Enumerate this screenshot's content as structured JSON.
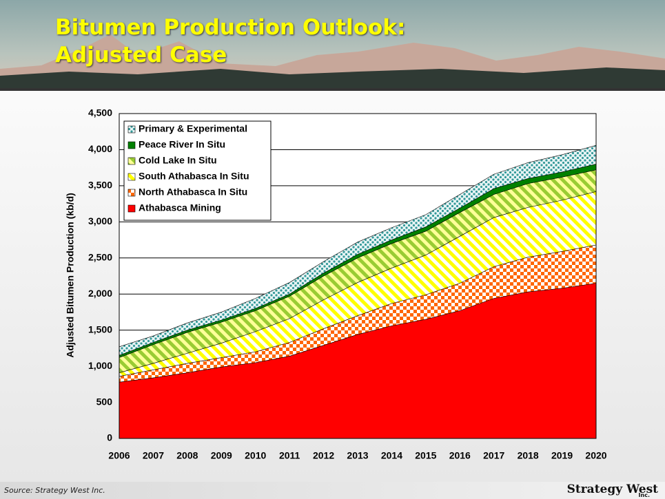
{
  "chart_data": {
    "type": "stacked_area",
    "title": "Bitumen Production Outlook: Adjusted Case",
    "y_label": "Adjusted Bitumen Production (kb/d)",
    "x": [
      2006,
      2007,
      2008,
      2009,
      2010,
      2011,
      2012,
      2013,
      2014,
      2015,
      2016,
      2017,
      2018,
      2019,
      2020
    ],
    "xlim": [
      2006,
      2020
    ],
    "ylim": [
      0,
      4500
    ],
    "yticks": [
      0,
      500,
      {
        "value": 1000,
        "label": "1,000"
      },
      {
        "value": 1500,
        "label": "1,500"
      },
      {
        "value": 2000,
        "label": "2,000"
      },
      {
        "value": 2500,
        "label": "2,500"
      },
      {
        "value": 3000,
        "label": "3,000"
      },
      {
        "value": 3500,
        "label": "3,500"
      },
      {
        "value": 4000,
        "label": "4,000"
      },
      {
        "value": 4500,
        "label": "4,500"
      }
    ],
    "grid": true,
    "legend": "top-left",
    "series": [
      {
        "name": "Athabasca Mining",
        "color": "#ff0000",
        "pattern": "solid",
        "values": [
          780,
          840,
          910,
          990,
          1050,
          1140,
          1290,
          1440,
          1560,
          1650,
          1770,
          1940,
          2030,
          2080,
          2150
        ]
      },
      {
        "name": "North Athabasca In Situ",
        "color": "#ff6600",
        "pattern": "checker",
        "values": [
          80,
          110,
          130,
          130,
          150,
          190,
          230,
          260,
          310,
          340,
          380,
          440,
          480,
          510,
          530
        ]
      },
      {
        "name": "South Athabasca In Situ",
        "color": "#ffff00",
        "pattern": "stripes",
        "values": [
          50,
          90,
          140,
          200,
          280,
          330,
          400,
          460,
          490,
          550,
          650,
          680,
          690,
          710,
          740
        ]
      },
      {
        "name": "Cold Lake In Situ",
        "color": "#99cc33",
        "pattern": "stripes",
        "values": [
          210,
          260,
          290,
          290,
          290,
          310,
          330,
          340,
          340,
          330,
          330,
          320,
          330,
          320,
          300
        ]
      },
      {
        "name": "Peace River In Situ",
        "color": "#008000",
        "pattern": "solid",
        "values": [
          30,
          30,
          30,
          30,
          30,
          30,
          40,
          50,
          50,
          60,
          60,
          80,
          70,
          70,
          80
        ]
      },
      {
        "name": "Primary & Experimental",
        "color": "#339999",
        "pattern": "dots",
        "values": [
          120,
          90,
          100,
          110,
          140,
          160,
          160,
          170,
          170,
          170,
          190,
          200,
          220,
          240,
          260
        ]
      }
    ]
  },
  "footer": {
    "source": "Source: Strategy West Inc.",
    "logo": "Strategy West",
    "logo_sub": "Inc."
  }
}
